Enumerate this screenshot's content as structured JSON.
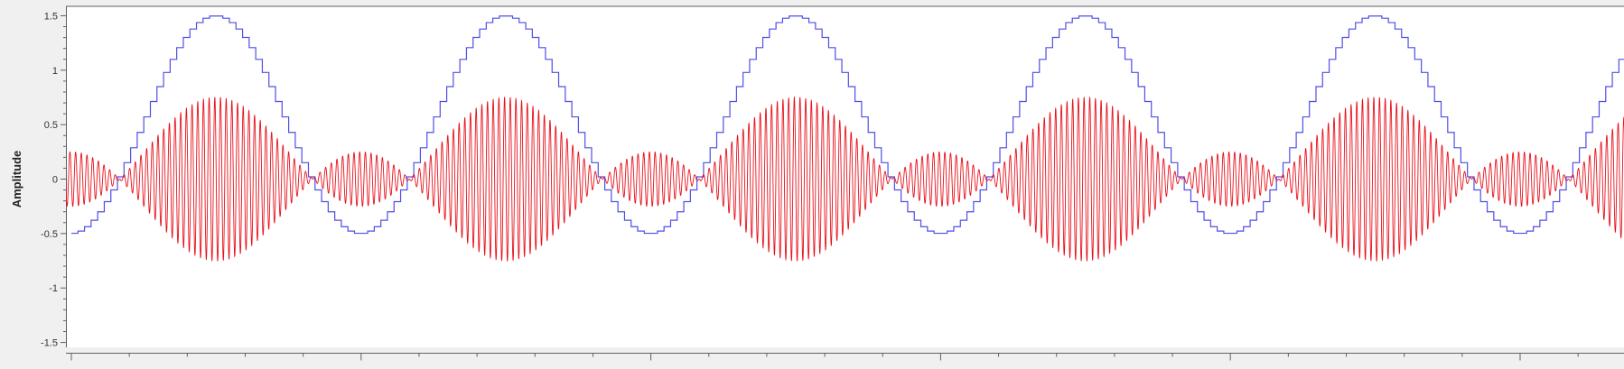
{
  "chart_data": {
    "type": "line",
    "title": "",
    "xlabel": "",
    "ylabel": "Amplitude",
    "ylim": [
      -1.5,
      1.5
    ],
    "yticks": [
      1.5,
      1,
      0.5,
      0,
      -0.5,
      -1,
      -1.5
    ],
    "ytick_labels": [
      "1.5",
      "1",
      "0.5",
      "0",
      "-0.5",
      "-1",
      "-1.5"
    ],
    "xlim": [
      0,
      5.35
    ],
    "x_major_ticks": [
      0,
      1,
      2,
      3,
      4,
      5
    ],
    "x_minor_step": 0.2,
    "x_tick_labels_visible": false,
    "grid": false,
    "legend": "none",
    "series": [
      {
        "style": "staircase",
        "color": "#4f4fe6",
        "function": "0.5 + sin(2*pi*x - pi/2)",
        "period": 1,
        "max": 1.5,
        "min": -0.5,
        "steps_per_period": 44
      },
      {
        "style": "line",
        "color": "#e8101a",
        "function": "0.5*(0.5 - cos(2*pi*x)) * sin(2*pi*51*x)",
        "envelope_period": 1,
        "envelope_max": 0.75,
        "envelope_min": -0.25,
        "carrier_cycles_per_period": 51
      }
    ]
  }
}
